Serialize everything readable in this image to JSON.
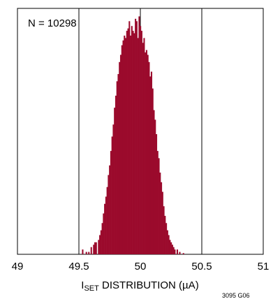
{
  "chart_data": {
    "type": "bar",
    "annotation": "N = 10298",
    "xlabel_parts": {
      "main": "I",
      "sub": "SET",
      "rest": " DISTRIBUTION (µA)"
    },
    "x_ticks": [
      49,
      49.5,
      50,
      50.5,
      51
    ],
    "x_tick_labels": [
      "49",
      "49.5",
      "50",
      "50.5",
      "51"
    ],
    "xlim": [
      49,
      51
    ],
    "ylim": [
      0,
      1
    ],
    "grid": "vertical lines at 49.5, 50, 50.5",
    "bar_color": "#9b0a2c",
    "bins": [
      49.53,
      49.56,
      49.58,
      49.6,
      49.62,
      49.63,
      49.64,
      49.66,
      49.67,
      49.68,
      49.69,
      49.7,
      49.71,
      49.72,
      49.73,
      49.74,
      49.75,
      49.76,
      49.77,
      49.78,
      49.79,
      49.8,
      49.81,
      49.82,
      49.83,
      49.84,
      49.85,
      49.86,
      49.87,
      49.88,
      49.89,
      49.9,
      49.91,
      49.92,
      49.93,
      49.94,
      49.95,
      49.96,
      49.97,
      49.98,
      49.99,
      50.0,
      50.01,
      50.02,
      50.03,
      50.04,
      50.05,
      50.06,
      50.07,
      50.08,
      50.09,
      50.1,
      50.11,
      50.12,
      50.13,
      50.14,
      50.15,
      50.16,
      50.17,
      50.18,
      50.19,
      50.2,
      50.21,
      50.22,
      50.23,
      50.24,
      50.25,
      50.26,
      50.27,
      50.28,
      50.3,
      50.32,
      50.35
    ],
    "values": [
      0.02,
      0.01,
      0.01,
      0.03,
      0.04,
      0.05,
      0.05,
      0.06,
      0.08,
      0.1,
      0.13,
      0.17,
      0.21,
      0.24,
      0.28,
      0.33,
      0.37,
      0.43,
      0.49,
      0.54,
      0.61,
      0.66,
      0.72,
      0.75,
      0.8,
      0.83,
      0.87,
      0.89,
      0.91,
      0.9,
      0.93,
      0.94,
      0.97,
      0.91,
      0.95,
      0.93,
      0.92,
      0.98,
      0.97,
      0.9,
      0.99,
      0.95,
      0.93,
      0.88,
      0.9,
      0.84,
      0.85,
      0.83,
      0.8,
      0.74,
      0.76,
      0.69,
      0.6,
      0.56,
      0.5,
      0.43,
      0.4,
      0.34,
      0.3,
      0.26,
      0.2,
      0.16,
      0.13,
      0.1,
      0.08,
      0.06,
      0.05,
      0.04,
      0.03,
      0.02,
      0.02,
      0.01,
      0.005
    ]
  },
  "figure_id": "3095 G06"
}
